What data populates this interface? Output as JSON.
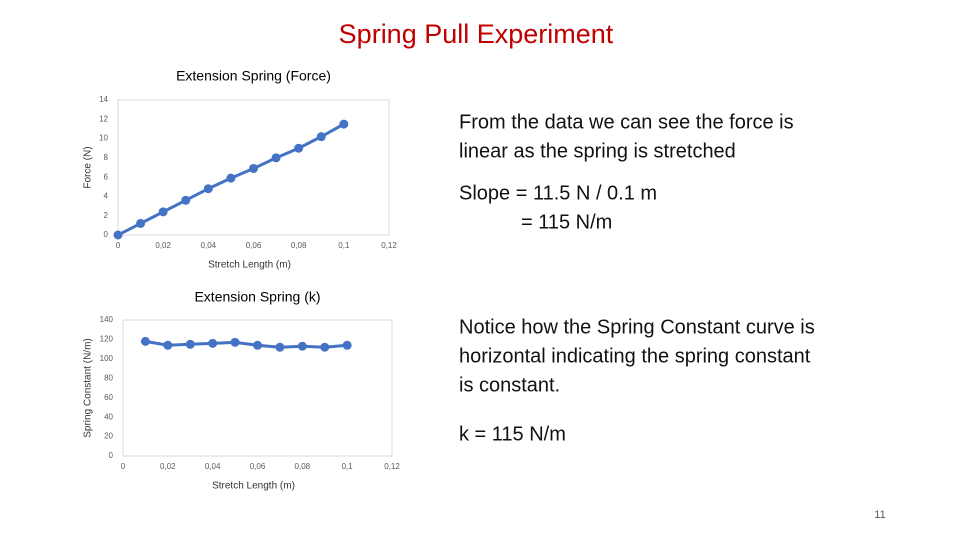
{
  "slide": {
    "title": "Spring Pull Experiment",
    "note1": [
      "From the data we can see the force is",
      "linear as the spring is stretched"
    ],
    "slope": [
      "Slope  =  11.5 N  /  0.1 m",
      "=  115 N/m"
    ],
    "note2": [
      "Notice how the Spring Constant curve is",
      "horizontal indicating the spring constant",
      "is constant."
    ],
    "k": "k  =  115 N/m",
    "page_number": "11"
  },
  "chart_data": [
    {
      "type": "line",
      "title": "Extension Spring (Force)",
      "x_label": "Stretch Length  (m)",
      "y_label": "Force  (N)",
      "x": [
        0,
        0.01,
        0.02,
        0.03,
        0.04,
        0.05,
        0.06,
        0.07,
        0.08,
        0.09,
        0.1
      ],
      "series": [
        {
          "name": "Force",
          "color": "#4472c4",
          "values": [
            0,
            1.2,
            2.4,
            3.6,
            4.8,
            5.9,
            6.9,
            8.0,
            9.0,
            10.2,
            11.5
          ]
        }
      ],
      "xlim": [
        0,
        0.12
      ],
      "xticks": [
        0,
        {
          "value": 0.02,
          "label": "0,02"
        },
        {
          "value": 0.04,
          "label": "0,04"
        },
        {
          "value": 0.06,
          "label": "0,06"
        },
        {
          "value": 0.08,
          "label": "0,08"
        },
        {
          "value": 0.1,
          "label": "0,1"
        },
        {
          "value": 0.12,
          "label": "0,12"
        }
      ],
      "ylim": [
        0,
        14
      ],
      "yticks": [
        0,
        2,
        4,
        6,
        8,
        10,
        12,
        14
      ],
      "grid": false
    },
    {
      "type": "line",
      "title": "Extension Spring (k)",
      "x_label": "Stretch Length  (m)",
      "y_label": "Spring Constant  (N/m)",
      "x": [
        0.01,
        0.02,
        0.03,
        0.04,
        0.05,
        0.06,
        0.07,
        0.08,
        0.09,
        0.1
      ],
      "series": [
        {
          "name": "k",
          "color": "#4472c4",
          "values": [
            118,
            114,
            115,
            116,
            117,
            114,
            112,
            113,
            112,
            114
          ]
        }
      ],
      "xlim": [
        0,
        0.12
      ],
      "xticks": [
        0,
        {
          "value": 0.02,
          "label": "0,02"
        },
        {
          "value": 0.04,
          "label": "0,04"
        },
        {
          "value": 0.06,
          "label": "0,06"
        },
        {
          "value": 0.08,
          "label": "0,08"
        },
        {
          "value": 0.1,
          "label": "0,1"
        },
        {
          "value": 0.12,
          "label": "0,12"
        }
      ],
      "ylim": [
        0,
        140
      ],
      "yticks": [
        0,
        20,
        40,
        60,
        80,
        100,
        120,
        140
      ],
      "grid": false
    }
  ]
}
